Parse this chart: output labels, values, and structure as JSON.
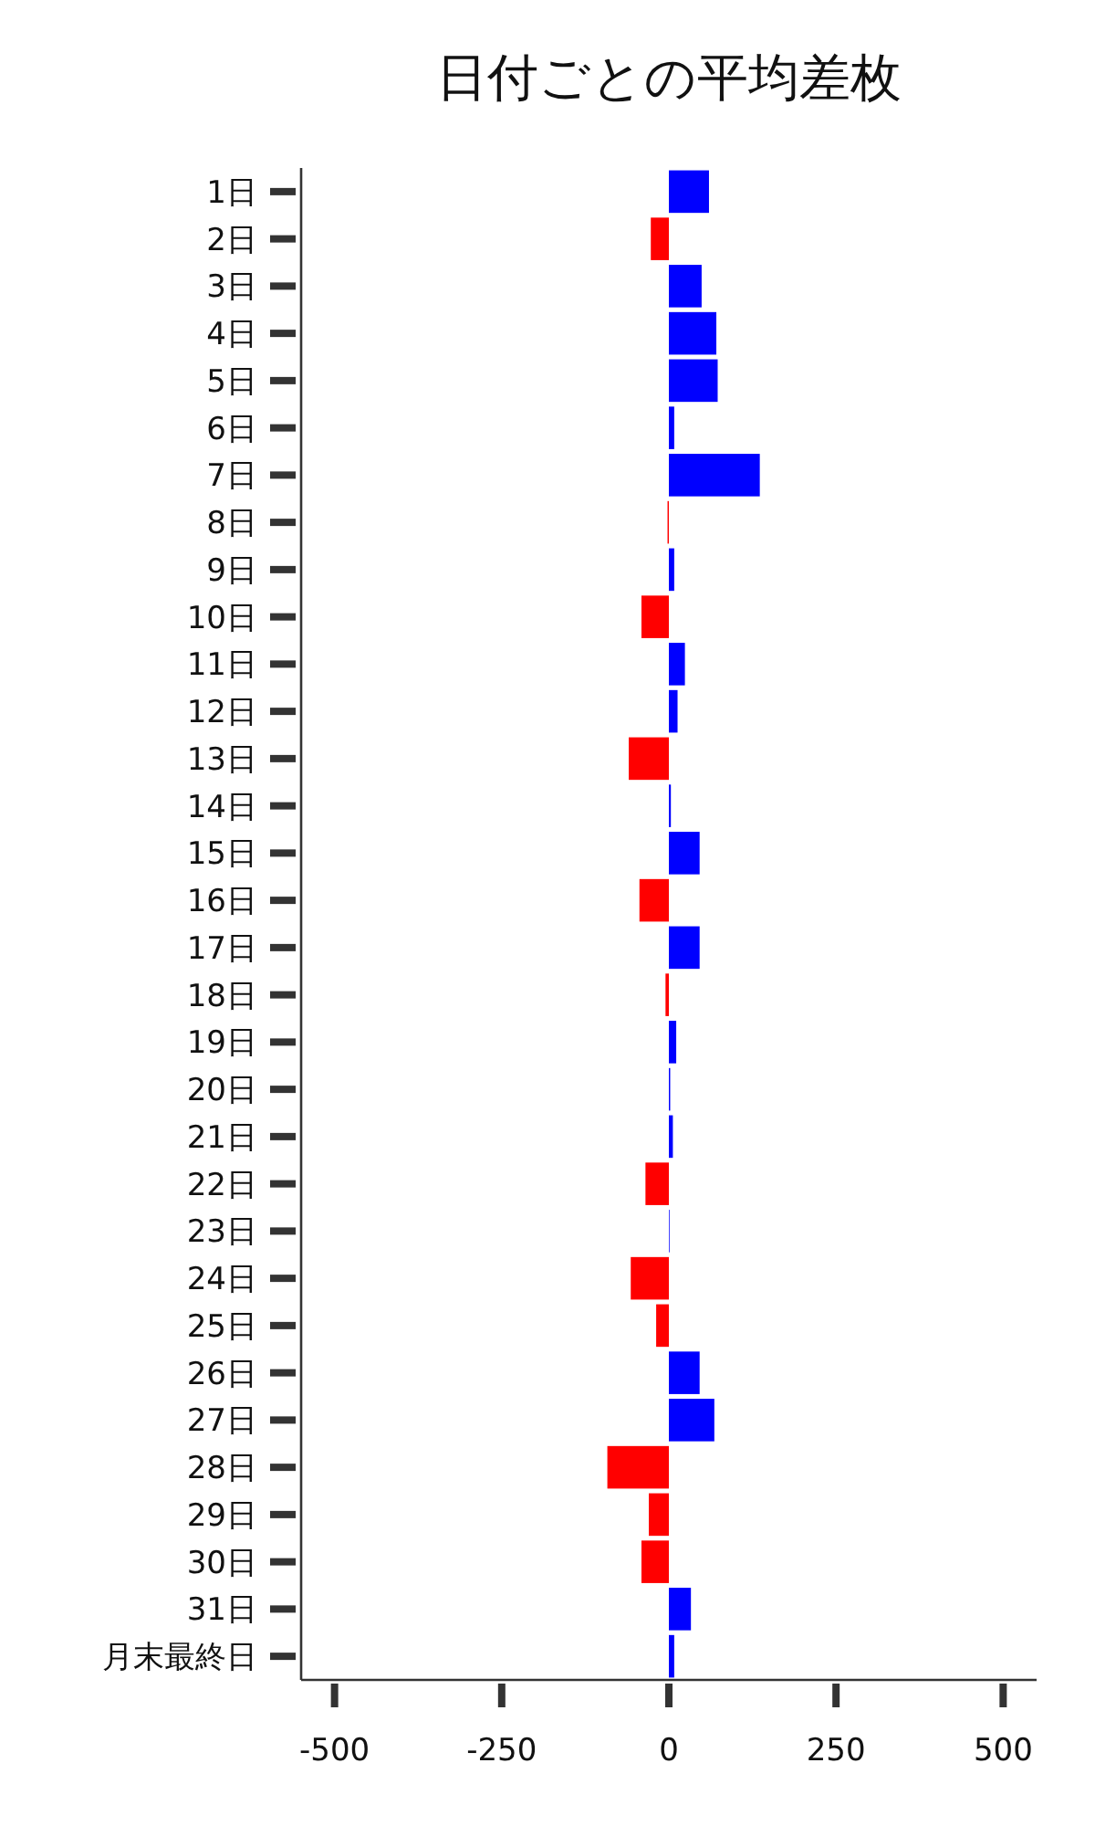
{
  "chart_data": {
    "type": "bar",
    "orientation": "horizontal",
    "title": "日付ごとの平均差枚",
    "categories": [
      "1日",
      "2日",
      "3日",
      "4日",
      "5日",
      "6日",
      "7日",
      "8日",
      "9日",
      "10日",
      "11日",
      "12日",
      "13日",
      "14日",
      "15日",
      "16日",
      "17日",
      "18日",
      "19日",
      "20日",
      "21日",
      "22日",
      "23日",
      "24日",
      "25日",
      "26日",
      "27日",
      "28日",
      "29日",
      "30日",
      "31日",
      "月末最終日"
    ],
    "values": [
      60,
      -27,
      49,
      71,
      73,
      8,
      136,
      -2,
      8,
      -41,
      24,
      13,
      -60,
      3,
      46,
      -44,
      46,
      -5,
      11,
      2,
      6,
      -35,
      1,
      -57,
      -19,
      46,
      68,
      -92,
      -30,
      -41,
      33,
      8
    ],
    "colors": [
      "#0000ff",
      "#ff0000",
      "#0000ff",
      "#0000ff",
      "#0000ff",
      "#0000ff",
      "#0000ff",
      "#ff0000",
      "#0000ff",
      "#ff0000",
      "#0000ff",
      "#0000ff",
      "#ff0000",
      "#0000ff",
      "#0000ff",
      "#ff0000",
      "#0000ff",
      "#ff0000",
      "#0000ff",
      "#0000ff",
      "#0000ff",
      "#ff0000",
      "#0000ff",
      "#ff0000",
      "#ff0000",
      "#0000ff",
      "#0000ff",
      "#ff0000",
      "#ff0000",
      "#ff0000",
      "#0000ff",
      "#0000ff"
    ],
    "xlim": [
      -550,
      550
    ],
    "xticks": [
      -500,
      -250,
      0,
      250,
      500
    ]
  }
}
